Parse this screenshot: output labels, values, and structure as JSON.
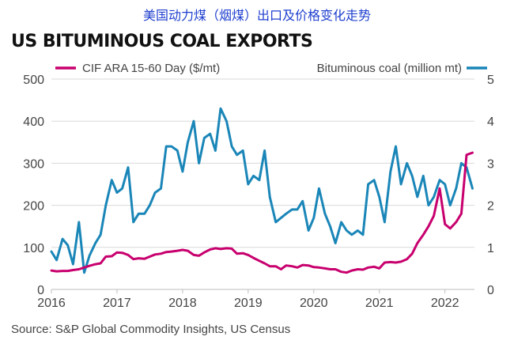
{
  "header_cn": "美国动力煤（烟煤）出口及价格变化走势",
  "title": "US BITUMINOUS COAL EXPORTS",
  "source": "Source: S&P Global Commodity Insights, US Census",
  "colors": {
    "price": "#c8006e",
    "exports": "#1a86b8",
    "grid": "#d9d9d9"
  },
  "chart_data": {
    "type": "line",
    "x_tick_labels": [
      "2016",
      "2017",
      "2018",
      "2019",
      "2020",
      "2021",
      "2022"
    ],
    "y_left": {
      "ticks": [
        0,
        100,
        200,
        300,
        400,
        500
      ],
      "range": [
        0,
        500
      ]
    },
    "y_right": {
      "ticks": [
        0,
        1,
        2,
        3,
        4,
        5
      ],
      "range": [
        0,
        5
      ]
    },
    "grid": "horizontal",
    "legend": "top",
    "series": [
      {
        "name": "CIF ARA 15-60 Day ($/mt)",
        "axis": "left",
        "x": [
          2016.0,
          2016.08,
          2016.17,
          2016.25,
          2016.33,
          2016.42,
          2016.5,
          2016.58,
          2016.67,
          2016.75,
          2016.83,
          2016.92,
          2017.0,
          2017.08,
          2017.17,
          2017.25,
          2017.33,
          2017.42,
          2017.5,
          2017.58,
          2017.67,
          2017.75,
          2017.83,
          2017.92,
          2018.0,
          2018.08,
          2018.17,
          2018.25,
          2018.33,
          2018.42,
          2018.5,
          2018.58,
          2018.67,
          2018.75,
          2018.83,
          2018.92,
          2019.0,
          2019.08,
          2019.17,
          2019.25,
          2019.33,
          2019.42,
          2019.5,
          2019.58,
          2019.67,
          2019.75,
          2019.83,
          2019.92,
          2020.0,
          2020.08,
          2020.17,
          2020.25,
          2020.33,
          2020.42,
          2020.5,
          2020.58,
          2020.67,
          2020.75,
          2020.83,
          2020.92,
          2021.0,
          2021.08,
          2021.17,
          2021.25,
          2021.33,
          2021.42,
          2021.5,
          2021.58,
          2021.67,
          2021.75,
          2021.83,
          2021.92,
          2022.0,
          2022.08,
          2022.17,
          2022.25,
          2022.33,
          2022.42
        ],
        "values": [
          45,
          43,
          44,
          44,
          46,
          48,
          52,
          56,
          60,
          62,
          78,
          79,
          88,
          87,
          82,
          72,
          74,
          73,
          78,
          83,
          85,
          89,
          90,
          92,
          94,
          92,
          82,
          80,
          88,
          95,
          98,
          96,
          98,
          97,
          85,
          86,
          82,
          75,
          68,
          62,
          55,
          55,
          48,
          57,
          55,
          52,
          58,
          57,
          53,
          52,
          50,
          48,
          48,
          42,
          40,
          45,
          48,
          47,
          52,
          54,
          50,
          64,
          65,
          64,
          66,
          72,
          85,
          110,
          130,
          150,
          175,
          240,
          155,
          145,
          160,
          180,
          320,
          325
        ]
      },
      {
        "name": "Bituminous coal (million mt)",
        "axis": "right",
        "x": [
          2016.0,
          2016.08,
          2016.17,
          2016.25,
          2016.33,
          2016.42,
          2016.5,
          2016.58,
          2016.67,
          2016.75,
          2016.83,
          2016.92,
          2017.0,
          2017.08,
          2017.17,
          2017.25,
          2017.33,
          2017.42,
          2017.5,
          2017.58,
          2017.67,
          2017.75,
          2017.83,
          2017.92,
          2018.0,
          2018.08,
          2018.17,
          2018.25,
          2018.33,
          2018.42,
          2018.5,
          2018.58,
          2018.67,
          2018.75,
          2018.83,
          2018.92,
          2019.0,
          2019.08,
          2019.17,
          2019.25,
          2019.33,
          2019.42,
          2019.5,
          2019.58,
          2019.67,
          2019.75,
          2019.83,
          2019.92,
          2020.0,
          2020.08,
          2020.17,
          2020.25,
          2020.33,
          2020.42,
          2020.5,
          2020.58,
          2020.67,
          2020.75,
          2020.83,
          2020.92,
          2021.0,
          2021.08,
          2021.17,
          2021.25,
          2021.33,
          2021.42,
          2021.5,
          2021.58,
          2021.67,
          2021.75,
          2021.83,
          2021.92,
          2022.0,
          2022.08,
          2022.17,
          2022.25,
          2022.33,
          2022.42
        ],
        "values": [
          0.9,
          0.7,
          1.2,
          1.05,
          0.6,
          1.6,
          0.4,
          0.8,
          1.1,
          1.3,
          2.0,
          2.6,
          2.3,
          2.4,
          2.9,
          1.6,
          1.8,
          1.8,
          2.0,
          2.3,
          2.4,
          3.4,
          3.4,
          3.3,
          2.8,
          3.5,
          4.0,
          3.0,
          3.6,
          3.7,
          3.3,
          4.3,
          4.0,
          3.4,
          3.2,
          3.3,
          2.5,
          2.7,
          2.6,
          3.3,
          2.2,
          1.6,
          1.7,
          1.8,
          1.9,
          1.9,
          2.1,
          1.4,
          1.7,
          2.4,
          1.8,
          1.5,
          1.1,
          1.6,
          1.4,
          1.3,
          1.4,
          1.3,
          2.5,
          2.6,
          2.2,
          1.6,
          2.8,
          3.4,
          2.5,
          3.0,
          2.7,
          2.2,
          2.7,
          2.0,
          2.2,
          2.6,
          2.5,
          2.0,
          2.4,
          3.0,
          2.9,
          2.4
        ]
      }
    ]
  }
}
